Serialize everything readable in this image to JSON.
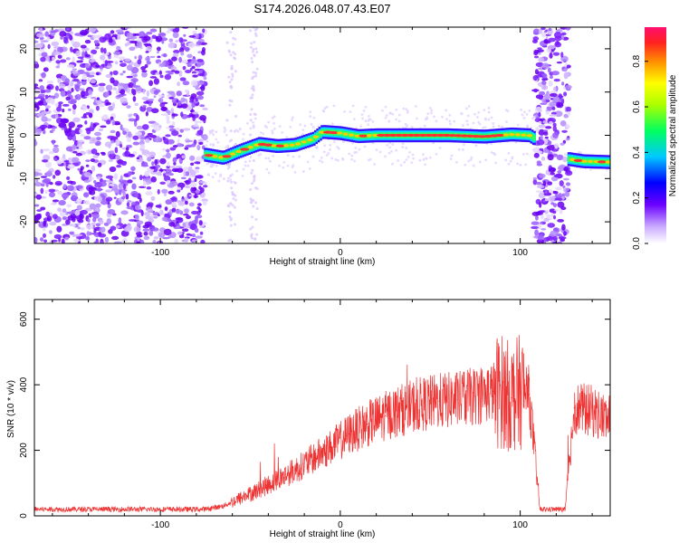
{
  "title": "S174.2026.048.07.43.E07",
  "chart_data": [
    {
      "type": "heatmap",
      "name": "spectrogram",
      "xlabel": "Height of straight line (km)",
      "ylabel": "Frequency (Hz)",
      "xlim": [
        -170,
        150
      ],
      "ylim": [
        -25,
        25
      ],
      "x_ticks": [
        -100,
        0,
        100
      ],
      "y_ticks": [
        -20,
        -10,
        0,
        10,
        20
      ],
      "colorbar": {
        "label": "Normalized spectral amplitude",
        "range": [
          0.0,
          0.95
        ],
        "ticks": [
          0.0,
          0.2,
          0.4,
          0.6,
          0.8
        ]
      },
      "ridge": {
        "x": [
          -75,
          -65,
          -55,
          -45,
          -35,
          -25,
          -15,
          -10,
          0,
          10,
          20,
          40,
          60,
          80,
          95,
          105,
          127,
          135,
          150
        ],
        "frequency": [
          -4.5,
          -5.2,
          -3.5,
          -2.0,
          -2.5,
          -2.2,
          -0.8,
          0.8,
          0.5,
          -0.2,
          0.0,
          0.0,
          0.0,
          -0.3,
          0.2,
          0.0,
          -5.5,
          -6.0,
          -6.2
        ]
      },
      "noise_regions": [
        [
          -170,
          -75
        ],
        [
          108,
          127
        ]
      ]
    },
    {
      "type": "line",
      "name": "snr",
      "xlabel": "Height of straight line (km)",
      "ylabel": "SNR (10 * v/v)",
      "xlim": [
        -170,
        150
      ],
      "ylim": [
        0,
        660
      ],
      "x_ticks": [
        -100,
        0,
        100
      ],
      "y_ticks": [
        0,
        200,
        400,
        600
      ],
      "series": [
        {
          "name": "SNR",
          "color": "#ee3333",
          "x": [
            -170,
            -150,
            -130,
            -110,
            -90,
            -75,
            -65,
            -55,
            -45,
            -35,
            -25,
            -15,
            -5,
            5,
            15,
            25,
            35,
            45,
            55,
            65,
            75,
            85,
            90,
            95,
            100,
            105,
            111,
            113,
            125,
            130,
            140,
            150
          ],
          "values": [
            20,
            20,
            20,
            20,
            20,
            20,
            30,
            55,
            80,
            110,
            140,
            175,
            210,
            250,
            280,
            305,
            325,
            340,
            350,
            355,
            365,
            380,
            380,
            360,
            380,
            370,
            20,
            20,
            20,
            330,
            320,
            290
          ]
        }
      ]
    }
  ]
}
